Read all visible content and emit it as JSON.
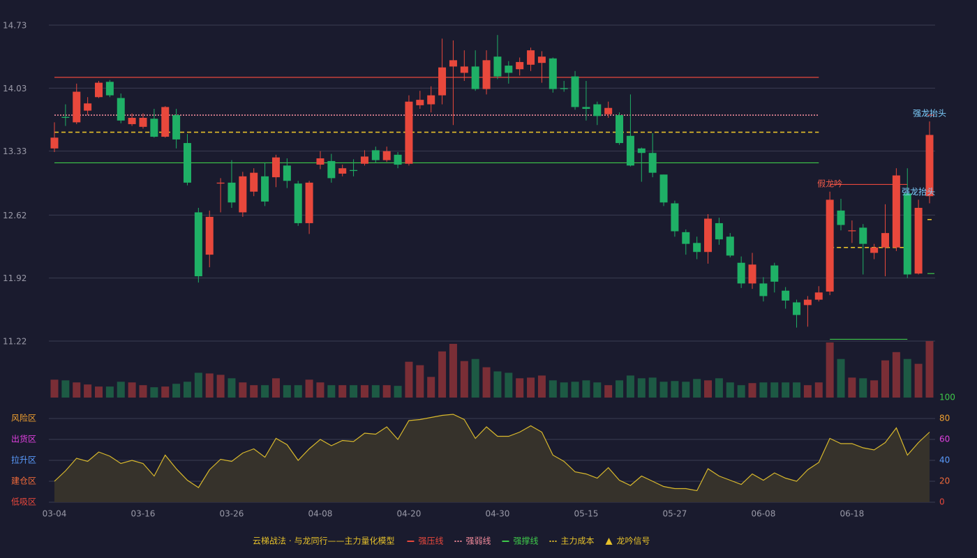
{
  "chart_data": {
    "type": "candlestick",
    "categories": [
      "03-04",
      null,
      null,
      null,
      null,
      null,
      null,
      null,
      "03-16",
      null,
      null,
      null,
      null,
      null,
      null,
      null,
      "03-26",
      null,
      null,
      null,
      null,
      null,
      null,
      null,
      "04-08",
      null,
      null,
      null,
      null,
      null,
      null,
      null,
      "04-20",
      null,
      null,
      null,
      null,
      null,
      null,
      null,
      "04-30",
      null,
      null,
      null,
      null,
      null,
      null,
      null,
      "05-15",
      null,
      null,
      null,
      null,
      null,
      null,
      null,
      "05-27",
      null,
      null,
      null,
      null,
      null,
      null,
      null,
      "06-08",
      null,
      null,
      null,
      null,
      null,
      null,
      null,
      "06-18",
      null,
      null,
      null,
      null,
      null,
      null,
      null
    ],
    "open": [
      13.36,
      13.71,
      13.65,
      13.78,
      13.93,
      14.1,
      13.92,
      13.63,
      13.6,
      13.69,
      13.49,
      13.73,
      13.42,
      12.65,
      12.18,
      12.97,
      12.98,
      12.65,
      12.88,
      13.05,
      13.04,
      13.17,
      12.97,
      12.53,
      13.18,
      13.22,
      13.08,
      13.12,
      13.19,
      13.34,
      13.23,
      13.29,
      13.19,
      13.84,
      13.85,
      13.95,
      14.27,
      14.2,
      14.27,
      14.02,
      14.38,
      14.28,
      14.24,
      14.29,
      14.31,
      14.36,
      14.03,
      14.16,
      13.82,
      13.85,
      13.74,
      13.73,
      13.5,
      13.36,
      13.31,
      13.07,
      12.75,
      12.43,
      12.31,
      12.21,
      12.53,
      12.38,
      12.09,
      11.86,
      11.86,
      12.06,
      11.78,
      11.65,
      11.62,
      11.68,
      11.77,
      12.67,
      12.44,
      12.48,
      12.2,
      12.26,
      12.26,
      12.86,
      11.97,
      12.83
    ],
    "high": [
      13.65,
      13.85,
      14.08,
      13.93,
      14.11,
      14.12,
      13.97,
      13.75,
      13.75,
      13.8,
      13.83,
      13.8,
      13.52,
      12.7,
      12.67,
      13.03,
      13.23,
      13.1,
      13.14,
      13.2,
      13.29,
      13.25,
      13.0,
      13.0,
      13.33,
      13.3,
      13.18,
      13.24,
      13.34,
      13.38,
      13.38,
      13.32,
      13.95,
      14.0,
      14.05,
      14.58,
      14.56,
      14.45,
      14.45,
      14.45,
      14.62,
      14.33,
      14.37,
      14.48,
      14.44,
      14.37,
      14.11,
      14.22,
      14.11,
      13.88,
      13.88,
      13.76,
      13.96,
      13.37,
      13.53,
      13.07,
      12.78,
      12.46,
      12.38,
      12.63,
      12.59,
      12.42,
      12.16,
      12.2,
      11.93,
      12.09,
      11.82,
      11.68,
      11.72,
      11.83,
      12.88,
      12.8,
      12.56,
      12.52,
      12.3,
      12.74,
      13.14,
      13.14,
      12.79,
      13.66
    ],
    "low": [
      13.32,
      13.61,
      13.63,
      13.73,
      13.92,
      13.93,
      13.64,
      13.61,
      13.58,
      13.48,
      13.48,
      13.36,
      12.95,
      11.87,
      12.04,
      12.65,
      12.7,
      12.6,
      12.83,
      12.72,
      12.93,
      12.92,
      12.5,
      12.41,
      13.13,
      12.98,
      13.05,
      13.05,
      13.17,
      13.2,
      13.21,
      13.14,
      13.17,
      13.8,
      13.76,
      13.85,
      13.62,
      14.11,
      14.0,
      13.96,
      14.13,
      14.08,
      14.17,
      14.22,
      14.09,
      13.98,
      13.99,
      13.79,
      13.67,
      13.62,
      13.7,
      13.4,
      13.16,
      12.99,
      13.04,
      12.72,
      12.38,
      12.18,
      12.13,
      12.08,
      12.29,
      12.15,
      11.81,
      11.8,
      11.66,
      11.76,
      11.58,
      11.37,
      11.38,
      11.66,
      11.73,
      12.45,
      12.31,
      11.96,
      12.13,
      11.94,
      12.22,
      11.92,
      11.96,
      12.75
    ],
    "close": [
      13.48,
      13.7,
      13.99,
      13.86,
      14.09,
      13.95,
      13.67,
      13.7,
      13.7,
      13.49,
      13.82,
      13.46,
      12.98,
      11.94,
      12.6,
      12.98,
      12.76,
      13.05,
      13.09,
      12.77,
      13.26,
      13.0,
      12.53,
      12.98,
      13.25,
      13.03,
      13.14,
      13.11,
      13.27,
      13.23,
      13.33,
      13.18,
      13.88,
      13.9,
      13.95,
      14.26,
      14.34,
      14.27,
      14.02,
      14.34,
      14.16,
      14.2,
      14.32,
      14.45,
      14.38,
      14.02,
      14.02,
      13.82,
      13.8,
      13.72,
      13.81,
      13.42,
      13.17,
      13.31,
      13.09,
      12.76,
      12.44,
      12.3,
      12.21,
      12.58,
      12.35,
      12.17,
      11.86,
      12.07,
      11.72,
      11.88,
      11.67,
      11.51,
      11.68,
      11.76,
      12.79,
      12.51,
      12.45,
      12.3,
      12.26,
      12.42,
      13.06,
      11.96,
      12.7,
      13.51
    ],
    "up_color": "#e8483c",
    "down_color": "#1fb066",
    "ylim": [
      11.22,
      14.73
    ],
    "yticks": [
      11.22,
      11.92,
      12.62,
      13.33,
      14.03,
      14.73
    ],
    "grid": true,
    "volume": [
      26,
      25,
      22,
      19,
      16,
      16,
      23,
      22,
      18,
      15,
      16,
      20,
      23,
      36,
      35,
      33,
      28,
      22,
      18,
      18,
      28,
      18,
      18,
      26,
      22,
      18,
      18,
      18,
      18,
      18,
      18,
      17,
      52,
      47,
      30,
      67,
      78,
      53,
      56,
      44,
      38,
      36,
      28,
      29,
      32,
      25,
      22,
      23,
      25,
      22,
      18,
      25,
      32,
      28,
      29,
      23,
      24,
      23,
      27,
      25,
      28,
      22,
      18,
      21,
      22,
      22,
      22,
      22,
      18,
      22,
      80,
      56,
      29,
      28,
      25,
      54,
      66,
      56,
      49,
      82
    ],
    "volume_up_color": "#7a2e36",
    "volume_down_color": "#1d5a44",
    "indicator": {
      "values": [
        20,
        30,
        42,
        39,
        48,
        44,
        37,
        40,
        37,
        25,
        45,
        32,
        21,
        14,
        31,
        41,
        39,
        47,
        51,
        43,
        61,
        55,
        40,
        51,
        60,
        54,
        59,
        58,
        66,
        65,
        72,
        60,
        78,
        79,
        81,
        83,
        84,
        79,
        61,
        72,
        63,
        63,
        67,
        73,
        67,
        45,
        39,
        29,
        27,
        23,
        33,
        21,
        16,
        25,
        20,
        15,
        13,
        13,
        11,
        32,
        25,
        21,
        17,
        27,
        21,
        28,
        23,
        20,
        31,
        38,
        61,
        56,
        56,
        52,
        50,
        57,
        71,
        45,
        57,
        67
      ],
      "color": "#d9b92c",
      "fill": "#36322b",
      "ylim": [
        0,
        100
      ],
      "yticks": [
        0,
        20,
        40,
        60,
        80,
        100
      ],
      "tick_colors": [
        "#e8483c",
        "#f06a3a",
        "#5a9cff",
        "#e040e0",
        "#f0a030",
        "#3ec94a"
      ],
      "zones": [
        {
          "label": "低吸区",
          "value": 0,
          "color": "#e8483c"
        },
        {
          "label": "建仓区",
          "value": 20,
          "color": "#f06a3a"
        },
        {
          "label": "拉升区",
          "value": 40,
          "color": "#5a9cff"
        },
        {
          "label": "出货区",
          "value": 60,
          "color": "#e040e0"
        },
        {
          "label": "风险区",
          "value": 80,
          "color": "#f0a030"
        }
      ]
    },
    "levels": [
      {
        "name": "强压线",
        "color": "#e8483c",
        "dashed": false,
        "segments": [
          {
            "from": 0,
            "to": 69,
            "value": 14.15
          },
          {
            "from": 70,
            "to": 77,
            "value": 12.96
          },
          {
            "from": 79,
            "to": 79,
            "value": 13.73
          }
        ]
      },
      {
        "name": "强弱线",
        "color": "#f08a9a",
        "dashed": true,
        "segments": [
          {
            "from": 0,
            "to": 69,
            "value": 13.73
          }
        ]
      },
      {
        "name": "强撑线",
        "color": "#3ec94a",
        "dashed": false,
        "segments": [
          {
            "from": 0,
            "to": 69,
            "value": 13.2
          },
          {
            "from": 70,
            "to": 77,
            "value": 11.24
          },
          {
            "from": 79,
            "to": 79,
            "value": 11.97
          }
        ]
      },
      {
        "name": "主力成本",
        "color": "#e6c12a",
        "dashed": true,
        "segments": [
          {
            "from": 0,
            "to": 69,
            "value": 13.54
          },
          {
            "from": 70,
            "to": 77,
            "value": 12.26
          },
          {
            "from": 79,
            "to": 79,
            "value": 12.57
          }
        ]
      }
    ],
    "signals": [
      {
        "label": "假龙吟",
        "index": 70,
        "color": "#f05a4a"
      },
      {
        "label": "强龙抬头",
        "index": 78,
        "color": "#7fd0ff"
      },
      {
        "label": "强龙抬头",
        "index": 79,
        "color": "#7fd0ff"
      }
    ],
    "legend_title": "云梯战法 · 与龙同行——主力量化模型",
    "legend_title_color": "#e6c12a",
    "signal_legend": {
      "label": "龙吟信号",
      "color": "#e6c12a"
    }
  }
}
